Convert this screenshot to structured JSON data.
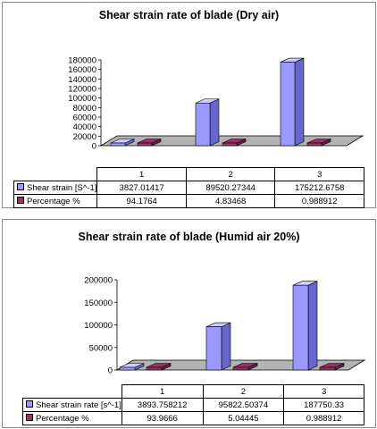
{
  "colors": {
    "series1": "#9999ff",
    "series1_side": "#6666cc",
    "series1_top": "#ccccff",
    "series2": "#993366",
    "series2_dark": "#662244",
    "floor": "#b3b3b3"
  },
  "chart_data": [
    {
      "type": "bar",
      "title": "Shear strain rate of blade (Dry air)",
      "categories": [
        "1",
        "2",
        "3"
      ],
      "ylim": [
        0,
        180000
      ],
      "yticks": [
        "180000",
        "160000",
        "140000",
        "120000",
        "100000",
        "80000",
        "60000",
        "40000",
        "20000",
        "0"
      ],
      "ytick_values": [
        180000,
        160000,
        140000,
        120000,
        100000,
        80000,
        60000,
        40000,
        20000,
        0
      ],
      "series": [
        {
          "name": "Shear strain [S^-1]",
          "values": [
            3827.01417,
            89520.27344,
            175212.6758
          ],
          "labels": [
            "3827.01417",
            "89520.27344",
            "175212.6758"
          ]
        },
        {
          "name": "Percentage %",
          "values": [
            94.1764,
            4.83468,
            0.988912
          ],
          "labels": [
            "94.1764",
            "4.83468",
            "0.988912"
          ]
        }
      ],
      "legend": "table below",
      "grid": false
    },
    {
      "type": "bar",
      "title": "Shear strain rate of blade (Humid air 20%)",
      "categories": [
        "1",
        "2",
        "3"
      ],
      "ylim": [
        0,
        200000
      ],
      "yticks": [
        "200000",
        "150000",
        "100000",
        "50000",
        "0"
      ],
      "ytick_values": [
        200000,
        150000,
        100000,
        50000,
        0
      ],
      "series": [
        {
          "name": "Shear strain rate [s^-1]",
          "values": [
            3893.758212,
            95822.50374,
            187750.33
          ],
          "labels": [
            "3893.758212",
            "95822.50374",
            "187750.33"
          ]
        },
        {
          "name": "Percentage %",
          "values": [
            93.9666,
            5.04445,
            0.988912
          ],
          "labels": [
            "93.9666",
            "5.04445",
            "0.988912"
          ]
        }
      ],
      "legend": "table below",
      "grid": false
    }
  ]
}
